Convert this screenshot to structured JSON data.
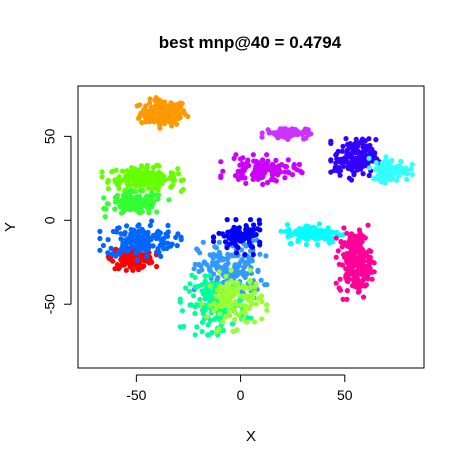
{
  "chart_data": {
    "type": "scatter",
    "title": "best mnp@40 = 0.4794",
    "xlabel": "X",
    "ylabel": "Y",
    "xlim": [
      -78,
      88
    ],
    "ylim": [
      -88,
      80
    ],
    "xticks": [
      -50,
      0,
      50
    ],
    "yticks": [
      -50,
      0,
      50
    ],
    "xtick_labels": [
      "-50",
      "0",
      "50"
    ],
    "ytick_labels": [
      "-50",
      "0",
      "50"
    ],
    "grid": false,
    "legend": "none",
    "marker": "filled-circle",
    "clusters": [
      {
        "color": "#ff9900",
        "center": [
          -37,
          64
        ],
        "spread": [
          10,
          7
        ],
        "count": 170
      },
      {
        "color": "#66ff00",
        "center": [
          -47,
          25
        ],
        "spread": [
          15,
          6
        ],
        "count": 170
      },
      {
        "color": "#33ff33",
        "center": [
          -50,
          10
        ],
        "spread": [
          12,
          6
        ],
        "count": 130
      },
      {
        "color": "#ff0000",
        "center": [
          -52,
          -22
        ],
        "spread": [
          9,
          6
        ],
        "count": 160
      },
      {
        "color": "#0066ff",
        "center": [
          -48,
          -12
        ],
        "spread": [
          15,
          9
        ],
        "count": 150
      },
      {
        "color": "#3399ff",
        "center": [
          -5,
          -30
        ],
        "spread": [
          14,
          16
        ],
        "count": 180
      },
      {
        "color": "#00ff99",
        "center": [
          -12,
          -50
        ],
        "spread": [
          13,
          14
        ],
        "count": 150
      },
      {
        "color": "#99ff33",
        "center": [
          -3,
          -48
        ],
        "spread": [
          12,
          14
        ],
        "count": 120
      },
      {
        "color": "#0000ff",
        "center": [
          0,
          -10
        ],
        "spread": [
          10,
          8
        ],
        "count": 90
      },
      {
        "color": "#cc00ff",
        "center": [
          10,
          30
        ],
        "spread": [
          15,
          7
        ],
        "count": 110
      },
      {
        "color": "#cc33ff",
        "center": [
          22,
          52
        ],
        "spread": [
          9,
          3
        ],
        "count": 80
      },
      {
        "color": "#3300ff",
        "center": [
          55,
          37
        ],
        "spread": [
          9,
          10
        ],
        "count": 160
      },
      {
        "color": "#00ffff",
        "center": [
          35,
          -8
        ],
        "spread": [
          12,
          5
        ],
        "count": 120
      },
      {
        "color": "#33ffff",
        "center": [
          72,
          30
        ],
        "spread": [
          8,
          6
        ],
        "count": 100
      },
      {
        "color": "#ff0099",
        "center": [
          55,
          -25
        ],
        "spread": [
          7,
          17
        ],
        "count": 200
      }
    ]
  }
}
